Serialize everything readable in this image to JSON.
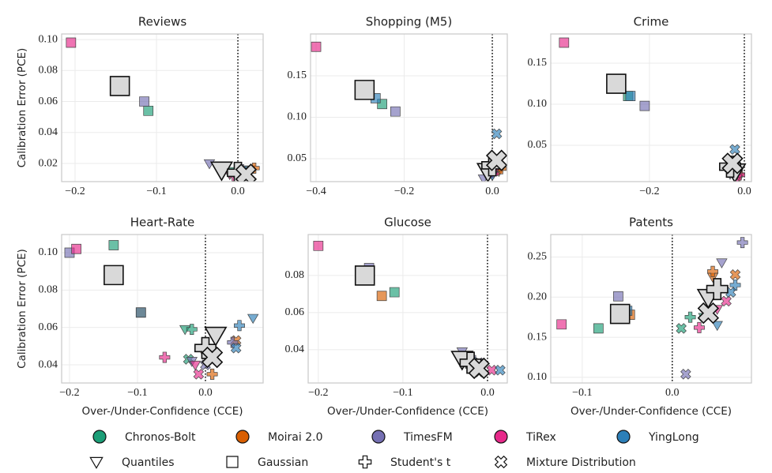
{
  "chart_data": [
    {
      "type": "scatter",
      "title": "Reviews",
      "ylabel": "Calibration Error (PCE)",
      "vline": 0,
      "xlim": [
        -0.2165,
        0.031
      ],
      "ylim": [
        0.0083,
        0.1036
      ],
      "xticks": [
        {
          "value": -0.2,
          "label": "−0.2"
        },
        {
          "value": -0.1,
          "label": "−0.1"
        },
        {
          "value": 0.0,
          "label": "0.0"
        }
      ],
      "yticks": [
        {
          "value": 0.02,
          "label": "0.02"
        },
        {
          "value": 0.04,
          "label": "0.04"
        },
        {
          "value": 0.06,
          "label": "0.06"
        },
        {
          "value": 0.08,
          "label": "0.08"
        },
        {
          "value": 0.1,
          "label": "0.10"
        }
      ],
      "series": [
        {
          "name": "Chronos-Bolt",
          "color": "#1b9e77",
          "x": [
            -0.005,
            -0.11,
            0.0,
            0.005
          ],
          "values": [
            0.015,
            0.054,
            0.014,
            0.013
          ]
        },
        {
          "name": "Moirai 2.0",
          "color": "#d95f02",
          "x": [
            0.015,
            -0.14,
            0.02,
            0.01
          ],
          "values": [
            0.016,
            0.07,
            0.017,
            0.015
          ]
        },
        {
          "name": "TimesFM",
          "color": "#7570b3",
          "x": [
            -0.035,
            -0.115,
            0.005,
            0.0
          ],
          "values": [
            0.02,
            0.06,
            0.016,
            0.014
          ]
        },
        {
          "name": "TiRex",
          "color": "#e7298a",
          "x": [
            -0.01,
            -0.205,
            -0.005,
            0.0
          ],
          "values": [
            0.013,
            0.098,
            0.012,
            0.013
          ]
        },
        {
          "name": "YingLong",
          "color": "#2c7fb8",
          "x": [
            0.005,
            -0.145,
            0.01,
            0.008
          ],
          "values": [
            0.014,
            0.071,
            0.015,
            0.014
          ]
        },
        {
          "color": "#d9d9d9",
          "size": "large",
          "x": [
            -0.02,
            -0.145,
            0.0,
            0.01
          ],
          "values": [
            0.016,
            0.07,
            0.014,
            0.013
          ]
        }
      ]
    },
    {
      "type": "scatter",
      "title": "Shopping (M5)",
      "vline": 0,
      "xlim": [
        -0.4126,
        0.034
      ],
      "ylim": [
        0.0224,
        0.2005
      ],
      "xticks": [
        {
          "value": -0.4,
          "label": "−0.4"
        },
        {
          "value": -0.2,
          "label": "−0.2"
        },
        {
          "value": 0.0,
          "label": "0.0"
        }
      ],
      "yticks": [
        {
          "value": 0.05,
          "label": "0.05"
        },
        {
          "value": 0.1,
          "label": "0.10"
        },
        {
          "value": 0.15,
          "label": "0.15"
        }
      ],
      "series": [
        {
          "name": "Chronos-Bolt",
          "color": "#1b9e77",
          "x": [
            -0.01,
            -0.25,
            0.0,
            0.005
          ],
          "values": [
            0.035,
            0.116,
            0.04,
            0.038
          ]
        },
        {
          "name": "Moirai 2.0",
          "color": "#d95f02",
          "x": [
            0.015,
            -0.285,
            0.02,
            0.01
          ],
          "values": [
            0.035,
            0.133,
            0.038,
            0.04
          ]
        },
        {
          "name": "TimesFM",
          "color": "#7570b3",
          "x": [
            -0.02,
            -0.22,
            -0.005,
            0.0
          ],
          "values": [
            0.026,
            0.107,
            0.042,
            0.04
          ]
        },
        {
          "name": "TiRex",
          "color": "#e7298a",
          "x": [
            -0.01,
            -0.4,
            0.0,
            0.005
          ],
          "values": [
            0.03,
            0.185,
            0.033,
            0.035
          ]
        },
        {
          "name": "YingLong",
          "color": "#2c7fb8",
          "x": [
            0.0,
            -0.265,
            0.005,
            0.01
          ],
          "values": [
            0.03,
            0.123,
            0.045,
            0.08
          ]
        },
        {
          "color": "#d9d9d9",
          "size": "large",
          "x": [
            -0.01,
            -0.29,
            0.0,
            0.01
          ],
          "values": [
            0.035,
            0.133,
            0.042,
            0.048
          ]
        }
      ]
    },
    {
      "type": "scatter",
      "title": "Crime",
      "vline": 0,
      "xlim": [
        -0.408,
        0.015
      ],
      "ylim": [
        0.0058,
        0.1856
      ],
      "xticks": [
        {
          "value": -0.2,
          "label": "−0.2"
        },
        {
          "value": 0.0,
          "label": "0.0"
        }
      ],
      "yticks": [
        {
          "value": 0.05,
          "label": "0.05"
        },
        {
          "value": 0.1,
          "label": "0.10"
        },
        {
          "value": 0.15,
          "label": "0.15"
        }
      ],
      "series": [
        {
          "name": "Chronos-Bolt",
          "color": "#1b9e77",
          "x": [
            -0.02,
            -0.245,
            -0.03,
            -0.025
          ],
          "values": [
            0.015,
            0.11,
            0.02,
            0.02
          ]
        },
        {
          "name": "Moirai 2.0",
          "color": "#d95f02",
          "x": [
            -0.01,
            -0.265,
            -0.015,
            -0.02
          ],
          "values": [
            0.012,
            0.125,
            0.018,
            0.022
          ]
        },
        {
          "name": "TimesFM",
          "color": "#7570b3",
          "x": [
            -0.03,
            -0.21,
            -0.025,
            -0.02
          ],
          "values": [
            0.015,
            0.098,
            0.025,
            0.028
          ]
        },
        {
          "name": "TiRex",
          "color": "#e7298a",
          "x": [
            -0.015,
            -0.38,
            -0.01,
            -0.015
          ],
          "values": [
            0.01,
            0.175,
            0.014,
            0.016
          ]
        },
        {
          "name": "YingLong",
          "color": "#2c7fb8",
          "x": [
            -0.02,
            -0.24,
            -0.02,
            -0.02
          ],
          "values": [
            0.018,
            0.11,
            0.03,
            0.045
          ]
        },
        {
          "color": "#d9d9d9",
          "size": "large",
          "x": [
            -0.02,
            -0.27,
            -0.03,
            -0.025
          ],
          "values": [
            0.018,
            0.125,
            0.024,
            0.028
          ]
        }
      ]
    },
    {
      "type": "scatter",
      "title": "Heart-Rate",
      "ylabel": "Calibration Error (PCE)",
      "xlabel": "Over-/Under-Confidence (CCE)",
      "vline": 0,
      "xlim": [
        -0.2116,
        0.0849
      ],
      "ylim": [
        0.0303,
        0.1097
      ],
      "xticks": [
        {
          "value": -0.2,
          "label": "−0.2"
        },
        {
          "value": -0.1,
          "label": "−0.1"
        },
        {
          "value": 0.0,
          "label": "0.0"
        }
      ],
      "yticks": [
        {
          "value": 0.04,
          "label": "0.04"
        },
        {
          "value": 0.06,
          "label": "0.06"
        },
        {
          "value": 0.08,
          "label": "0.08"
        },
        {
          "value": 0.1,
          "label": "0.10"
        }
      ],
      "series": [
        {
          "name": "Chronos-Bolt",
          "color": "#1b9e77",
          "x": [
            -0.03,
            -0.135,
            -0.02,
            -0.025
          ],
          "values": [
            0.059,
            0.104,
            0.059,
            0.043
          ]
        },
        {
          "name": "Moirai 2.0",
          "color": "#d95f02",
          "x": [
            0.0,
            -0.095,
            0.01,
            0.045
          ],
          "values": [
            0.045,
            0.068,
            0.035,
            0.053
          ]
        },
        {
          "name": "TimesFM",
          "color": "#7570b3",
          "x": [
            -0.02,
            -0.2,
            0.04,
            0.0
          ],
          "values": [
            0.042,
            0.1,
            0.052,
            0.04
          ]
        },
        {
          "name": "TiRex",
          "color": "#e7298a",
          "x": [
            -0.015,
            -0.19,
            -0.06,
            -0.01
          ],
          "values": [
            0.04,
            0.102,
            0.044,
            0.035
          ]
        },
        {
          "name": "YingLong",
          "color": "#2c7fb8",
          "x": [
            0.07,
            -0.095,
            0.05,
            0.045
          ],
          "values": [
            0.065,
            0.068,
            0.061,
            0.049
          ]
        },
        {
          "color": "#d9d9d9",
          "size": "large",
          "x": [
            0.015,
            -0.135,
            0.0,
            0.01
          ],
          "values": [
            0.056,
            0.088,
            0.049,
            0.044
          ]
        }
      ]
    },
    {
      "type": "scatter",
      "title": "Glucose",
      "xlabel": "Over-/Under-Confidence (CCE)",
      "vline": 0,
      "xlim": [
        -0.212,
        0.0234
      ],
      "ylim": [
        0.0221,
        0.1021
      ],
      "xticks": [
        {
          "value": -0.2,
          "label": "−0.2"
        },
        {
          "value": -0.1,
          "label": "−0.1"
        },
        {
          "value": 0.0,
          "label": "0.0"
        }
      ],
      "yticks": [
        {
          "value": 0.04,
          "label": "0.04"
        },
        {
          "value": 0.06,
          "label": "0.06"
        },
        {
          "value": 0.08,
          "label": "0.08"
        }
      ],
      "series": [
        {
          "name": "Chronos-Bolt",
          "color": "#1b9e77",
          "x": [
            -0.03,
            -0.11,
            -0.02,
            -0.01
          ],
          "values": [
            0.035,
            0.071,
            0.031,
            0.028
          ]
        },
        {
          "name": "Moirai 2.0",
          "color": "#d95f02",
          "x": [
            -0.035,
            -0.125,
            -0.025,
            -0.015
          ],
          "values": [
            0.036,
            0.069,
            0.034,
            0.03
          ]
        },
        {
          "name": "TimesFM",
          "color": "#7570b3",
          "x": [
            -0.03,
            -0.14,
            -0.02,
            -0.01
          ],
          "values": [
            0.039,
            0.084,
            0.036,
            0.033
          ]
        },
        {
          "name": "TiRex",
          "color": "#e7298a",
          "x": [
            -0.025,
            -0.2,
            -0.015,
            0.005
          ],
          "values": [
            0.033,
            0.096,
            0.03,
            0.029
          ]
        },
        {
          "name": "YingLong",
          "color": "#2c7fb8",
          "x": [
            -0.03,
            -0.15,
            -0.02,
            0.015
          ],
          "values": [
            0.037,
            0.081,
            0.035,
            0.029
          ]
        },
        {
          "color": "#d9d9d9",
          "size": "large",
          "x": [
            -0.03,
            -0.145,
            -0.02,
            -0.01
          ],
          "values": [
            0.035,
            0.08,
            0.033,
            0.03
          ]
        }
      ]
    },
    {
      "type": "scatter",
      "title": "Patents",
      "xlabel": "Over-/Under-Confidence (CCE)",
      "vline": 0,
      "xlim": [
        -0.135,
        0.088
      ],
      "ylim": [
        0.093,
        0.278
      ],
      "xticks": [
        {
          "value": -0.1,
          "label": "−0.1"
        },
        {
          "value": 0.0,
          "label": "0.0"
        }
      ],
      "yticks": [
        {
          "value": 0.1,
          "label": "0.10"
        },
        {
          "value": 0.15,
          "label": "0.15"
        },
        {
          "value": 0.2,
          "label": "0.20"
        },
        {
          "value": 0.25,
          "label": "0.25"
        }
      ],
      "series": [
        {
          "name": "Chronos-Bolt",
          "color": "#1b9e77",
          "x": [
            0.035,
            -0.082,
            0.02,
            0.01
          ],
          "values": [
            0.175,
            0.161,
            0.175,
            0.161
          ]
        },
        {
          "name": "Moirai 2.0",
          "color": "#d95f02",
          "x": [
            0.045,
            -0.047,
            0.045,
            0.07
          ],
          "values": [
            0.225,
            0.178,
            0.232,
            0.228
          ]
        },
        {
          "name": "TimesFM",
          "color": "#7570b3",
          "x": [
            0.055,
            -0.06,
            0.078,
            0.015
          ],
          "values": [
            0.243,
            0.201,
            0.268,
            0.104
          ]
        },
        {
          "name": "TiRex",
          "color": "#e7298a",
          "x": [
            0.05,
            -0.123,
            0.03,
            0.06
          ],
          "values": [
            0.185,
            0.166,
            0.162,
            0.195
          ]
        },
        {
          "name": "YingLong",
          "color": "#2c7fb8",
          "x": [
            0.05,
            -0.05,
            0.07,
            0.065
          ],
          "values": [
            0.165,
            0.183,
            0.215,
            0.206
          ]
        },
        {
          "color": "#d9d9d9",
          "size": "large",
          "x": [
            0.04,
            -0.058,
            0.05,
            0.04
          ],
          "values": [
            0.2,
            0.179,
            0.21,
            0.18
          ]
        }
      ]
    }
  ],
  "markers": [
    {
      "name": "Quantiles",
      "shape": "triangle"
    },
    {
      "name": "Gaussian",
      "shape": "square"
    },
    {
      "name": "Student's t",
      "shape": "plus"
    },
    {
      "name": "Mixture Distribution",
      "shape": "x"
    }
  ]
}
